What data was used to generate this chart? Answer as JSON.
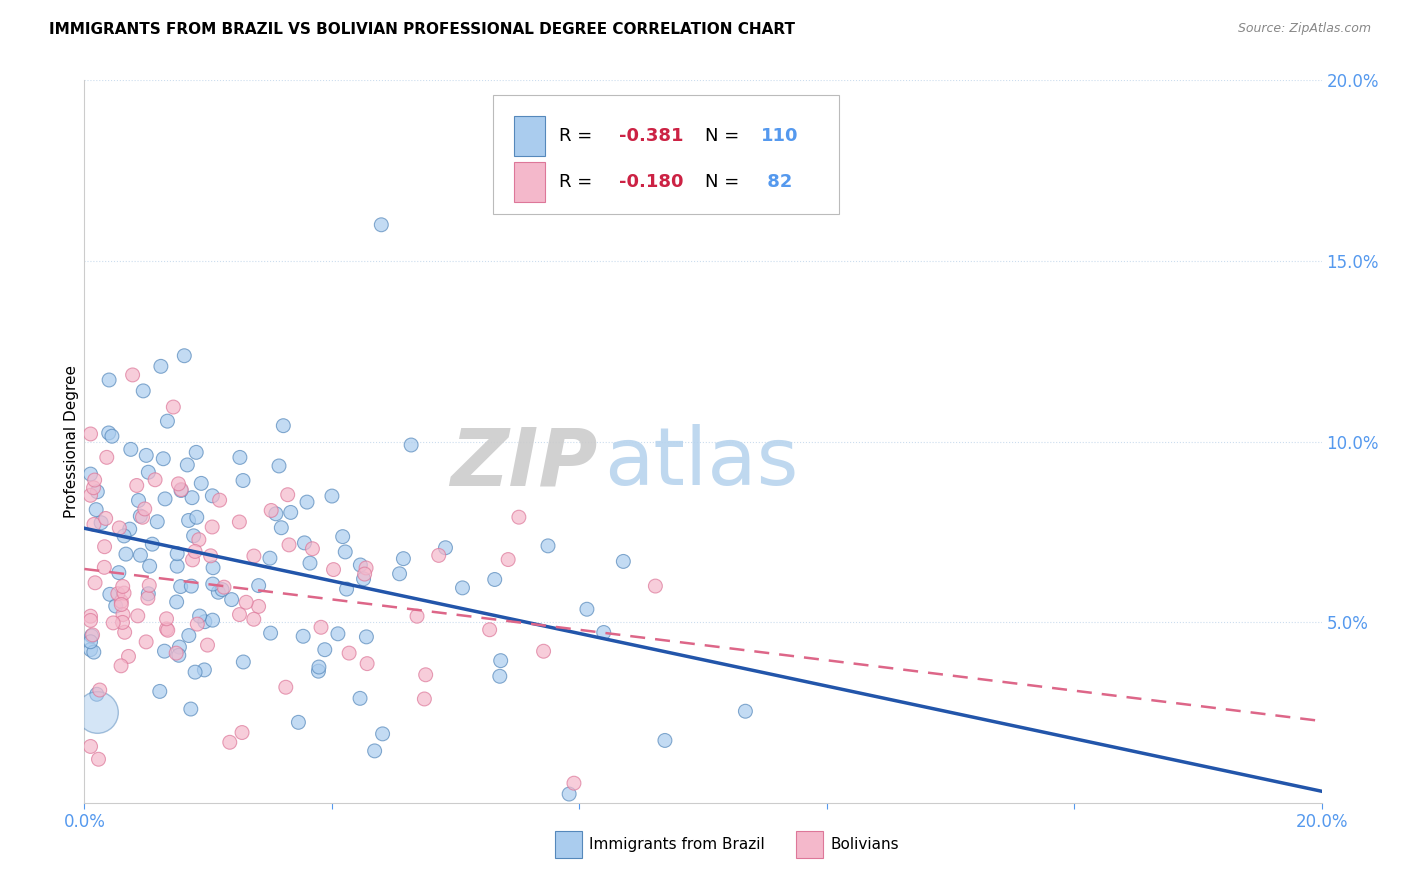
{
  "title": "IMMIGRANTS FROM BRAZIL VS BOLIVIAN PROFESSIONAL DEGREE CORRELATION CHART",
  "source": "Source: ZipAtlas.com",
  "ylabel": "Professional Degree",
  "background_color": "#ffffff",
  "watermark_zip": "ZIP",
  "watermark_atlas": "atlas",
  "color_brazil": "#aaccee",
  "color_bolivia": "#f4b8cb",
  "edge_color_brazil": "#5588bb",
  "edge_color_bolivia": "#dd7799",
  "line_color_brazil": "#2255aa",
  "line_color_bolivia": "#dd6688",
  "xmin": 0.0,
  "xmax": 0.2,
  "ymin": 0.0,
  "ymax": 0.2,
  "tick_color": "#5599ee",
  "grid_color": "#ddddee",
  "title_fontsize": 11,
  "axis_fontsize": 12,
  "legend_fontsize": 13
}
